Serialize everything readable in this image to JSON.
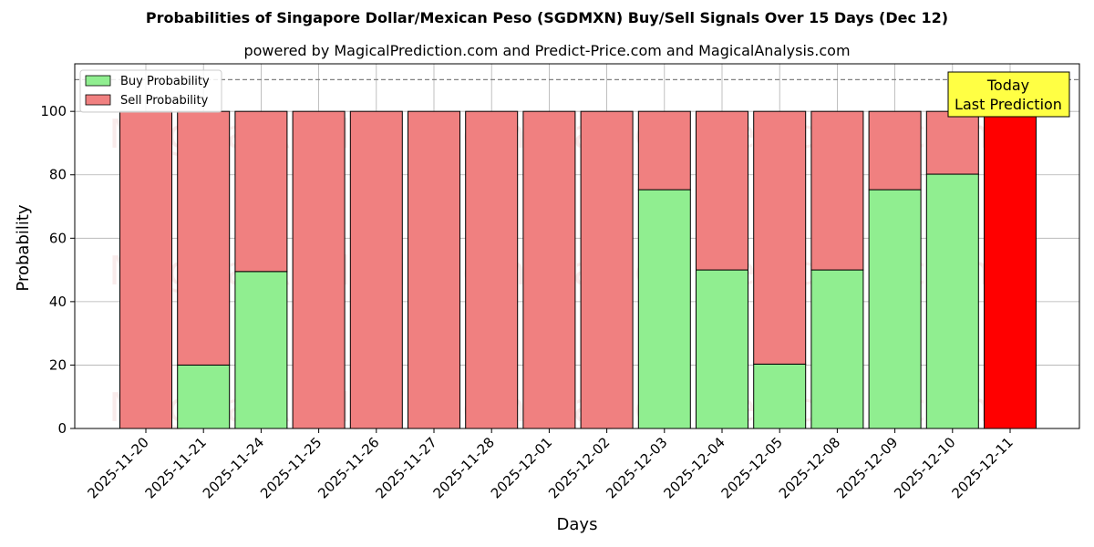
{
  "chart_data": {
    "type": "bar",
    "stacked": true,
    "title": "Probabilities of Singapore Dollar/Mexican Peso (SGDMXN) Buy/Sell Signals Over 15 Days (Dec 12)",
    "subtitle": "powered by MagicalPrediction.com and Predict-Price.com and MagicalAnalysis.com",
    "xlabel": "Days",
    "ylabel": "Probability",
    "ylim": [
      0,
      115
    ],
    "yticks": [
      0,
      20,
      40,
      60,
      80,
      100
    ],
    "grid": true,
    "legend_position": "top-left",
    "reference_line": 110,
    "categories": [
      "2025-11-20",
      "2025-11-21",
      "2025-11-24",
      "2025-11-25",
      "2025-11-26",
      "2025-11-27",
      "2025-11-28",
      "2025-12-01",
      "2025-12-02",
      "2025-12-03",
      "2025-12-04",
      "2025-12-05",
      "2025-12-08",
      "2025-12-09",
      "2025-12-10",
      "2025-12-11"
    ],
    "series": [
      {
        "name": "Buy Probability",
        "color": "#90ee90",
        "values": [
          0,
          20,
          49.5,
          0,
          0,
          0,
          0,
          0,
          0,
          75.3,
          50,
          20.3,
          50,
          75.3,
          80.2,
          0
        ]
      },
      {
        "name": "Sell Probability",
        "color": "#f08080",
        "values": [
          100,
          80,
          50.5,
          100,
          100,
          100,
          100,
          100,
          100,
          24.7,
          50,
          79.7,
          50,
          24.7,
          19.8,
          0
        ]
      }
    ],
    "today_bar": {
      "category": "2025-12-11",
      "value": 100,
      "color": "#ff0000"
    },
    "annotation": {
      "lines": [
        "Today",
        "Last Prediction"
      ],
      "background": "#ffff44"
    },
    "watermark": [
      "MagicalAnalysis.com",
      "MagicalPrediction.com"
    ]
  }
}
